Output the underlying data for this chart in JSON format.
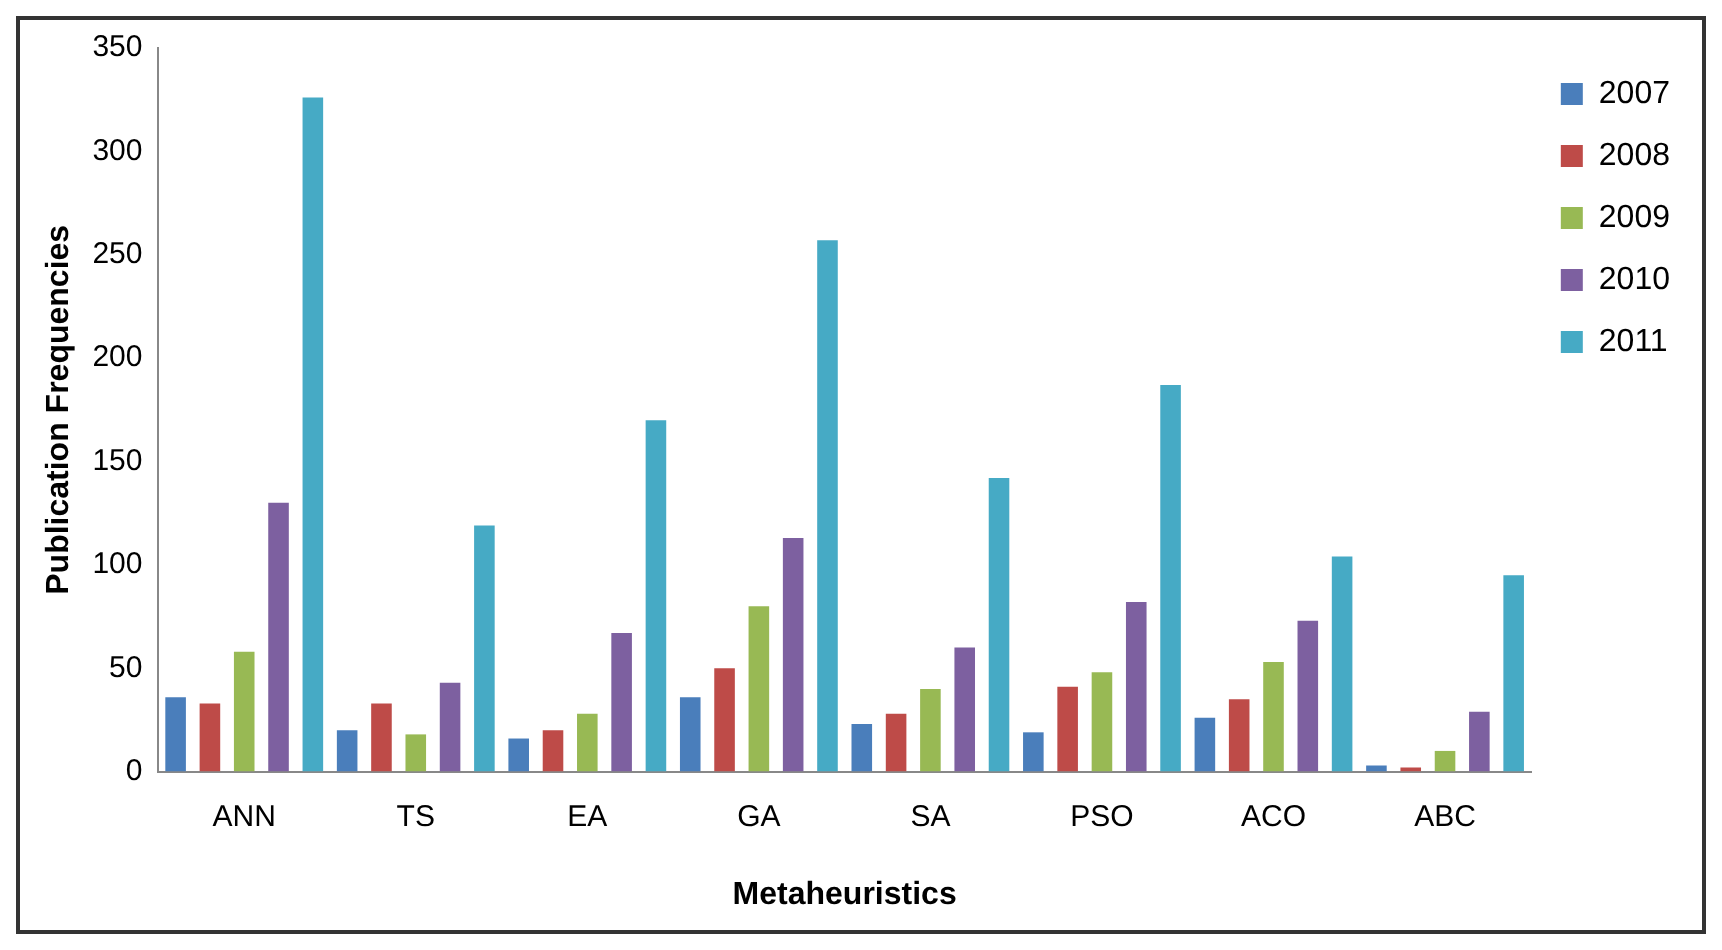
{
  "chart_data": {
    "type": "bar",
    "xlabel": "Metaheuristics",
    "ylabel": "Publication Frequencies",
    "categories": [
      "ANN",
      "TS",
      "EA",
      "GA",
      "SA",
      "PSO",
      "ACO",
      "ABC"
    ],
    "series": [
      {
        "name": "2007",
        "color": "#4a7ebb",
        "values": [
          36,
          20,
          16,
          36,
          23,
          19,
          26,
          3
        ]
      },
      {
        "name": "2008",
        "color": "#be4b48",
        "values": [
          33,
          33,
          20,
          50,
          28,
          41,
          35,
          2
        ]
      },
      {
        "name": "2009",
        "color": "#98b954",
        "values": [
          58,
          18,
          28,
          80,
          40,
          48,
          53,
          10
        ]
      },
      {
        "name": "2010",
        "color": "#7d60a0",
        "values": [
          130,
          43,
          67,
          113,
          60,
          82,
          73,
          29
        ]
      },
      {
        "name": "2011",
        "color": "#46aac5",
        "values": [
          326,
          119,
          170,
          257,
          142,
          187,
          104,
          95
        ]
      }
    ],
    "ylim": [
      0,
      350
    ],
    "yticks": [
      0,
      50,
      100,
      150,
      200,
      250,
      300,
      350
    ],
    "grid": false,
    "legend": "right"
  }
}
